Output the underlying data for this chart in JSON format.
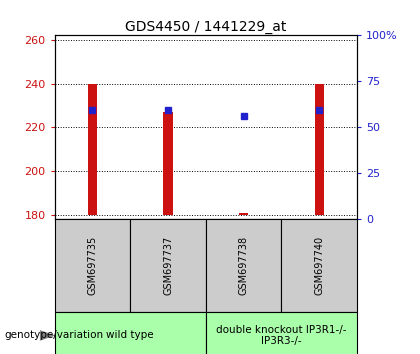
{
  "title": "GDS4450 / 1441229_at",
  "samples": [
    "GSM697735",
    "GSM697737",
    "GSM697738",
    "GSM697740"
  ],
  "bar_bottom": 180,
  "bar_tops": [
    240,
    227,
    181,
    240
  ],
  "blue_values": [
    228,
    228,
    225,
    228
  ],
  "ylim_left": [
    178,
    262
  ],
  "ylim_right": [
    0,
    100
  ],
  "yticks_left": [
    180,
    200,
    220,
    240,
    260
  ],
  "yticks_right": [
    0,
    25,
    50,
    75,
    100
  ],
  "ytick_labels_right": [
    "0",
    "25",
    "50",
    "75",
    "100%"
  ],
  "bar_color": "#cc1111",
  "blue_color": "#2222cc",
  "groups": [
    {
      "label": "wild type",
      "indices": [
        0,
        1
      ]
    },
    {
      "label": "double knockout IP3R1-/-\nIP3R3-/-",
      "indices": [
        2,
        3
      ]
    }
  ],
  "group_bg_color": "#aaffaa",
  "sample_bg_color": "#cccccc",
  "legend_count_color": "#cc1111",
  "legend_pct_color": "#2222cc",
  "left_tick_color": "#cc1111",
  "right_tick_color": "#2222cc",
  "bar_width": 0.12,
  "blue_marker_size": 5,
  "title_fontsize": 10,
  "tick_fontsize": 8,
  "sample_fontsize": 7,
  "group_fontsize": 7.5,
  "legend_fontsize": 7.5,
  "genotype_fontsize": 7.5
}
